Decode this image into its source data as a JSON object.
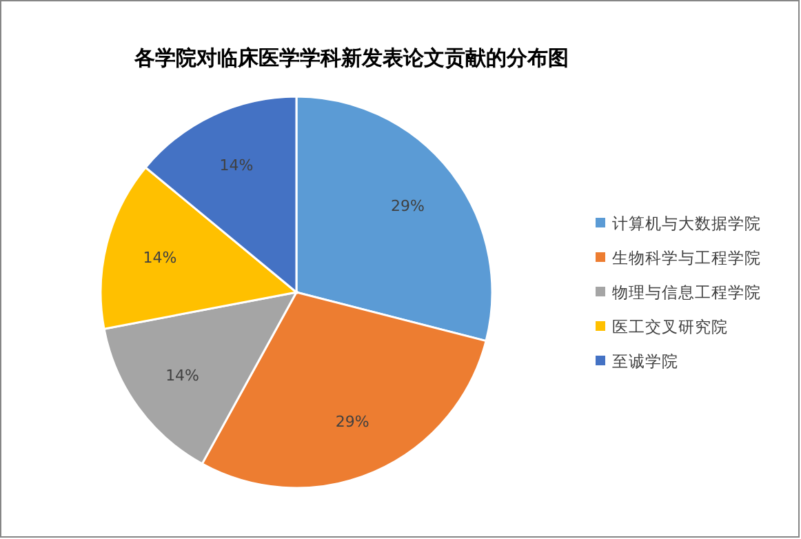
{
  "chart_data": {
    "type": "pie",
    "title": "各学院对临床医学学科新发表论文贡献的分布图",
    "categories": [
      "计算机与大数据学院",
      "生物科学与工程学院",
      "物理与信息工程学院",
      "医工交叉研究院",
      "至诚学院"
    ],
    "values": [
      29,
      29,
      14,
      14,
      14
    ],
    "colors": [
      "#5b9bd5",
      "#ed7d31",
      "#a5a5a5",
      "#ffc000",
      "#4472c4"
    ],
    "value_labels": [
      "29%",
      "29%",
      "14%",
      "14%",
      "14%"
    ],
    "legend": "right"
  }
}
